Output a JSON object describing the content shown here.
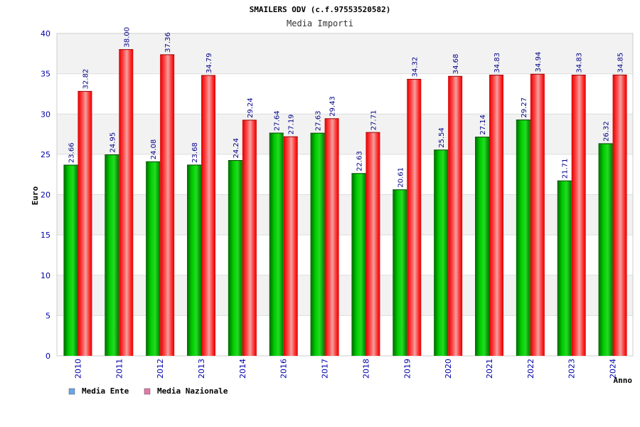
{
  "chart_data": {
    "type": "bar",
    "title": "SMAILERS ODV (c.f.97553520582)",
    "subtitle": "Media Importi",
    "xlabel": "Anno",
    "ylabel": "Euro",
    "ylim": [
      0,
      40
    ],
    "yticks": [
      "0",
      "5",
      "10",
      "15",
      "20",
      "25",
      "30",
      "35",
      "40"
    ],
    "categories": [
      "2010",
      "2011",
      "2012",
      "2013",
      "2014",
      "2016",
      "2017",
      "2018",
      "2019",
      "2020",
      "2021",
      "2022",
      "2023",
      "2024"
    ],
    "series": [
      {
        "name": "Media Ente",
        "color": "#00aa00",
        "legend_color": "#6aa6e8",
        "values": [
          23.66,
          24.95,
          24.08,
          23.68,
          24.24,
          27.64,
          27.63,
          22.63,
          20.61,
          25.54,
          27.14,
          29.27,
          21.71,
          26.32
        ],
        "labels": [
          "23.66",
          "24.95",
          "24.08",
          "23.68",
          "24.24",
          "27.64",
          "27.63",
          "22.63",
          "20.61",
          "25.54",
          "27.14",
          "29.27",
          "21.71",
          "26.32"
        ]
      },
      {
        "name": "Media Nazionale",
        "color": "#ee0000",
        "legend_color": "#e07aa8",
        "values": [
          32.82,
          38.0,
          37.36,
          34.79,
          29.24,
          27.19,
          29.43,
          27.71,
          34.32,
          34.68,
          34.83,
          34.94,
          34.83,
          34.85
        ],
        "labels": [
          "32.82",
          "38.00",
          "37.36",
          "34.79",
          "29.24",
          "27.19",
          "29.43",
          "27.71",
          "34.32",
          "34.68",
          "34.83",
          "34.94",
          "34.83",
          "34.85"
        ]
      }
    ],
    "grid": true,
    "legend": "bottom-left"
  }
}
